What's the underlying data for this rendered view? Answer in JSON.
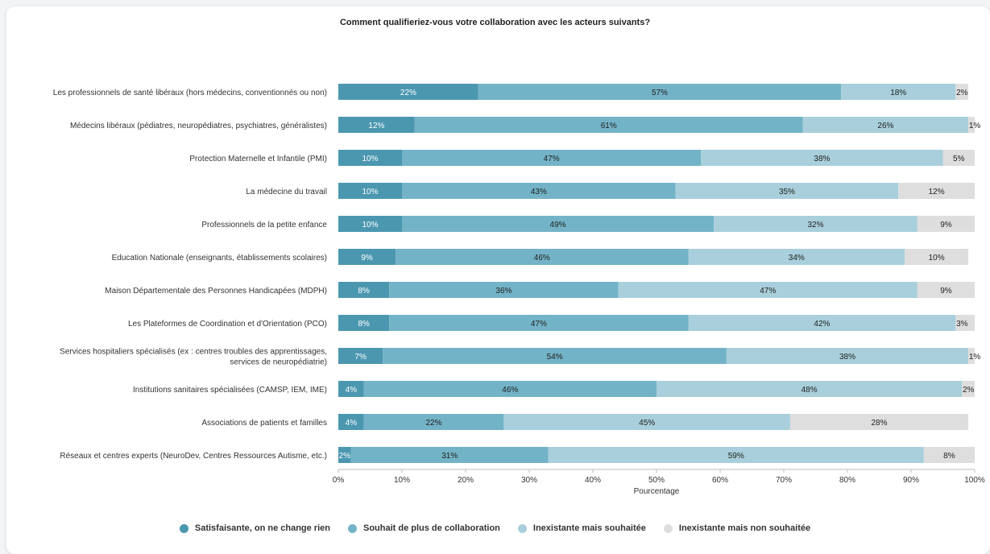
{
  "chart_data": {
    "type": "bar",
    "orientation": "horizontal",
    "stacked": true,
    "title": "Comment qualifieriez-vous votre collaboration avec les acteurs suivants?",
    "xlabel": "Pourcentage",
    "xlim": [
      0,
      100
    ],
    "x_ticks": [
      "0%",
      "10%",
      "20%",
      "30%",
      "40%",
      "50%",
      "60%",
      "70%",
      "80%",
      "90%",
      "100%"
    ],
    "categories": [
      [
        "Les professionnels de santé libéraux (hors médecins, conventionnés ou non)"
      ],
      [
        "Médecins libéraux (pédiatres, neuropédiatres, psychiatres, généralistes)"
      ],
      [
        "Protection Maternelle et Infantile (PMI)"
      ],
      [
        "La médecine du travail"
      ],
      [
        "Professionnels de la petite enfance"
      ],
      [
        "Education Nationale (enseignants, établissements scolaires)"
      ],
      [
        "Maison Départementale des Personnes Handicapées (MDPH)"
      ],
      [
        "Les Plateformes de Coordination et d'Orientation (PCO)"
      ],
      [
        "Services hospitaliers spécialisés (ex : centres troubles des apprentissages,",
        "services de neuropédiatrie)"
      ],
      [
        "Institutions sanitaires spécialisées (CAMSP, IEM, IME)"
      ],
      [
        "Associations de patients et familles"
      ],
      [
        "Réseaux et centres experts (NeuroDev, Centres Ressources Autisme, etc.)"
      ]
    ],
    "series": [
      {
        "name": "Satisfaisante, on ne change rien",
        "color": "#4b97b0",
        "values": [
          22,
          12,
          10,
          10,
          10,
          9,
          8,
          8,
          7,
          4,
          4,
          2
        ],
        "labels": [
          "22%",
          "12%",
          "10%",
          "10%",
          "10%",
          "9%",
          "8%",
          "8%",
          "7%",
          "4%",
          "4%",
          "2%"
        ]
      },
      {
        "name": "Souhait de plus de collaboration",
        "color": "#73b3c7",
        "values": [
          57,
          61,
          47,
          43,
          49,
          46,
          36,
          47,
          54,
          46,
          22,
          31
        ],
        "labels": [
          "57%",
          "61%",
          "47%",
          "43%",
          "49%",
          "46%",
          "36%",
          "47%",
          "54%",
          "46%",
          "22%",
          "31%"
        ]
      },
      {
        "name": "Inexistante mais souhaitée",
        "color": "#a8cfdb",
        "values": [
          18,
          26,
          38,
          35,
          32,
          34,
          47,
          42,
          38,
          48,
          45,
          59
        ],
        "labels": [
          "18%",
          "26%",
          "38%",
          "35%",
          "32%",
          "34%",
          "47%",
          "42%",
          "38%",
          "48%",
          "45%",
          "59%"
        ]
      },
      {
        "name": "Inexistante mais non souhaitée",
        "color": "#dedede",
        "values": [
          2,
          1,
          5,
          12,
          9,
          10,
          9,
          3,
          1,
          2,
          28,
          8
        ],
        "labels": [
          "2%",
          "1%",
          "5%",
          "12%",
          "9%",
          "10%",
          "9%",
          "3%",
          "1%",
          "2%",
          "28%",
          "8%"
        ]
      }
    ],
    "legend_position": "bottom",
    "grid": false
  }
}
